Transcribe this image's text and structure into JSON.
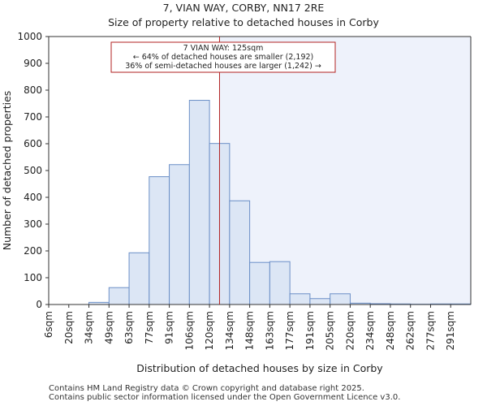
{
  "chart_data": {
    "type": "bar",
    "title": "7, VIAN WAY, CORBY, NN17 2RE",
    "subtitle": "Size of property relative to detached houses in Corby",
    "xlabel": "Distribution of detached houses by size in Corby",
    "ylabel": "Number of detached properties",
    "ylim": [
      0,
      1000
    ],
    "yticks": [
      0,
      100,
      200,
      300,
      400,
      500,
      600,
      700,
      800,
      900,
      1000
    ],
    "categories": [
      "6sqm",
      "20sqm",
      "34sqm",
      "49sqm",
      "63sqm",
      "77sqm",
      "91sqm",
      "106sqm",
      "120sqm",
      "134sqm",
      "148sqm",
      "163sqm",
      "177sqm",
      "191sqm",
      "205sqm",
      "220sqm",
      "234sqm",
      "248sqm",
      "262sqm",
      "277sqm",
      "291sqm"
    ],
    "values": [
      0,
      0,
      8,
      63,
      193,
      477,
      522,
      762,
      601,
      387,
      157,
      160,
      40,
      22,
      40,
      5,
      3,
      2,
      1,
      2,
      2
    ],
    "bar_color": "#dce6f5",
    "bar_edge_color": "#6b8fc7",
    "highlight_region_color": "#eef2fb",
    "marker": {
      "value": 125,
      "color": "#b22222",
      "label_lines": [
        "7 VIAN WAY: 125sqm",
        "← 64% of detached houses are smaller (2,192)",
        "36% of semi-detached houses are larger (1,242) →"
      ]
    },
    "grid": false
  },
  "footer": {
    "line1": "Contains HM Land Registry data © Crown copyright and database right 2025.",
    "line2": "Contains public sector information licensed under the Open Government Licence v3.0."
  }
}
